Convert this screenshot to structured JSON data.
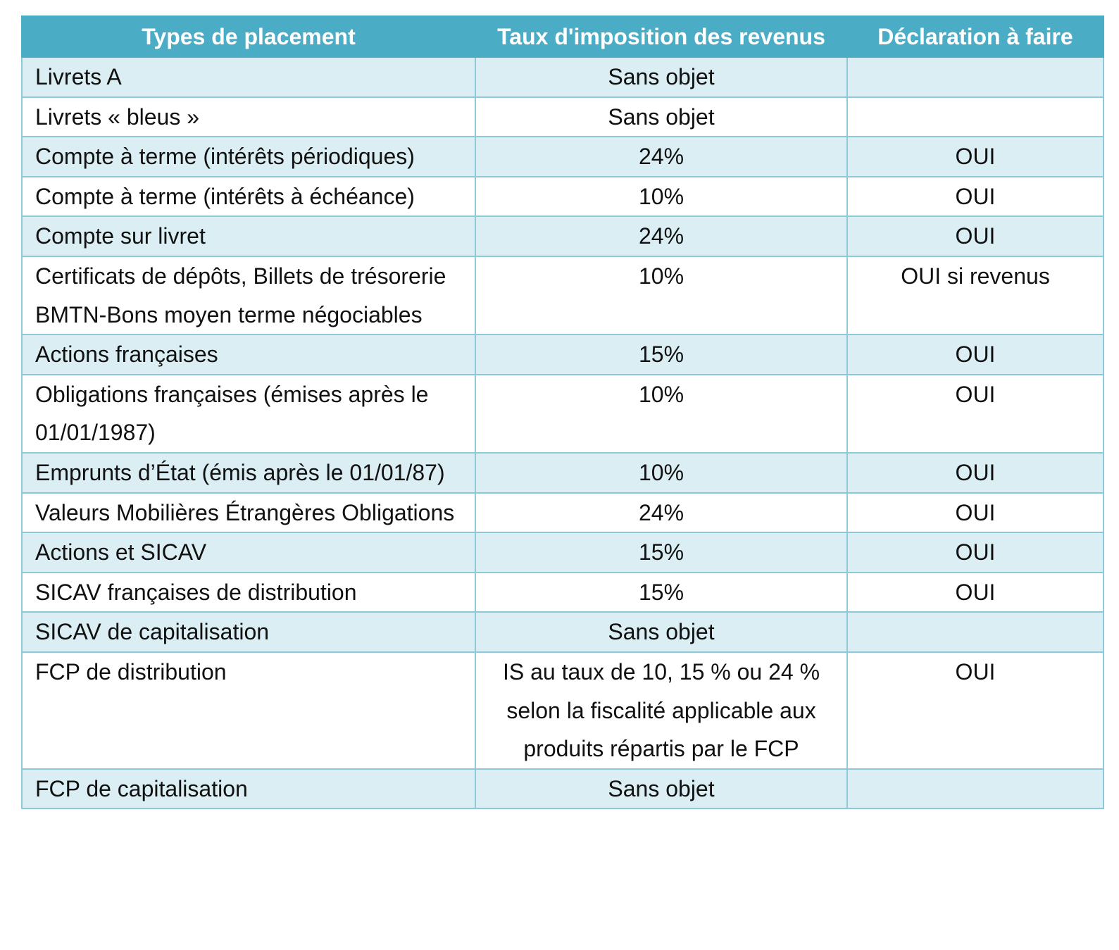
{
  "table": {
    "headers": [
      "Types de placement",
      "Taux d'imposition des revenus",
      "Déclaration à faire"
    ],
    "rows": [
      {
        "type": "Livrets A",
        "rate": "Sans objet",
        "decl": ""
      },
      {
        "type": "Livrets « bleus »",
        "rate": "Sans objet",
        "decl": ""
      },
      {
        "type": "Compte à terme (intérêts périodiques)",
        "rate": "24%",
        "decl": "OUI"
      },
      {
        "type": "Compte à terme (intérêts à échéance)",
        "rate": "10%",
        "decl": "OUI"
      },
      {
        "type": "Compte sur livret",
        "rate": "24%",
        "decl": "OUI"
      },
      {
        "type": "Certificats de dépôts, Billets de trésorerie BMTN-Bons moyen terme négociables",
        "rate": "10%",
        "decl": "OUI si revenus"
      },
      {
        "type": "Actions françaises",
        "rate": "15%",
        "decl": "OUI"
      },
      {
        "type": "Obligations françaises (émises après le 01/01/1987)",
        "rate": "10%",
        "decl": "OUI"
      },
      {
        "type": "Emprunts d’État (émis après le 01/01/87)",
        "rate": "10%",
        "decl": "OUI"
      },
      {
        "type": "Valeurs Mobilières Étrangères Obligations",
        "rate": "24%",
        "decl": "OUI"
      },
      {
        "type": "Actions et SICAV",
        "rate": "15%",
        "decl": "OUI"
      },
      {
        "type": "SICAV françaises de distribution",
        "rate": "15%",
        "decl": "OUI"
      },
      {
        "type": "SICAV de capitalisation",
        "rate": "Sans objet",
        "decl": ""
      },
      {
        "type": "FCP de distribution",
        "rate": "IS au taux de 10, 15 % ou 24 % selon la fiscalité applicable aux produits répartis par le FCP",
        "decl": "OUI"
      },
      {
        "type": "FCP de capitalisation",
        "rate": "Sans objet",
        "decl": ""
      }
    ]
  },
  "colors": {
    "header_bg": "#4bacc6",
    "header_text": "#ffffff",
    "row_shade": "#daeef3",
    "border": "#8fc9d9"
  }
}
